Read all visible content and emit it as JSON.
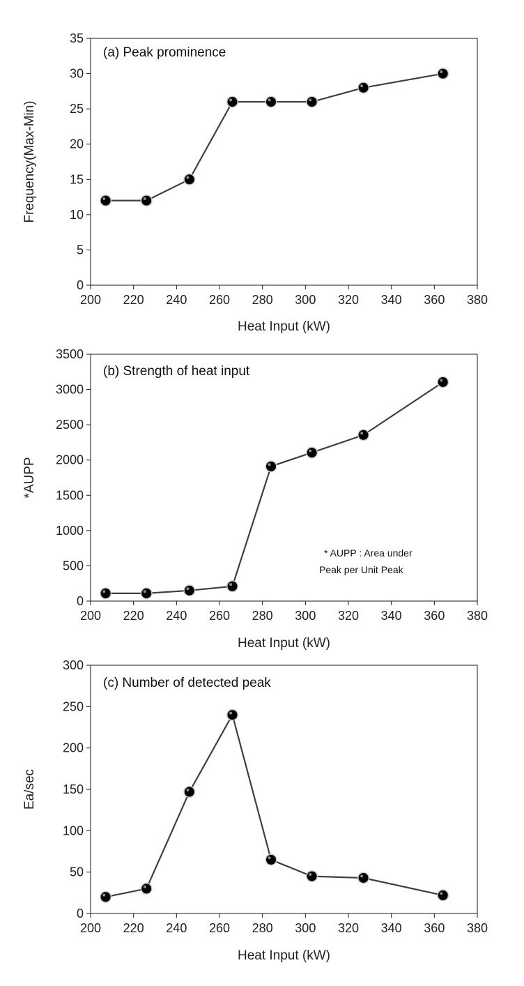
{
  "style": {
    "line_color": "#3a4048",
    "marker_color": "#000000"
  },
  "chart_data": [
    {
      "type": "line",
      "title": "(a) Peak prominence",
      "xlabel": "Heat Input (kW)",
      "ylabel": "Frequency(Max-Min)",
      "xlim": [
        200,
        380
      ],
      "ylim": [
        0,
        35
      ],
      "x_ticks": [
        "200",
        "220",
        "240",
        "260",
        "280",
        "300",
        "320",
        "340",
        "360",
        "380"
      ],
      "y_ticks": [
        "0",
        "5",
        "10",
        "15",
        "20",
        "25",
        "30",
        "35"
      ],
      "x": [
        207,
        226,
        246,
        266,
        284,
        303,
        327,
        364
      ],
      "y": [
        12,
        12,
        15,
        26,
        26,
        26,
        28,
        30
      ],
      "grid": false,
      "note_lines": []
    },
    {
      "type": "line",
      "title": "(b) Strength of heat input",
      "xlabel": "Heat Input (kW)",
      "ylabel": "*AUPP",
      "xlim": [
        200,
        380
      ],
      "ylim": [
        0,
        3500
      ],
      "x_ticks": [
        "200",
        "220",
        "240",
        "260",
        "280",
        "300",
        "320",
        "340",
        "360",
        "380"
      ],
      "y_ticks": [
        "0",
        "500",
        "1000",
        "1500",
        "2000",
        "2500",
        "3000",
        "3500"
      ],
      "x": [
        207,
        226,
        246,
        266,
        284,
        303,
        327,
        364
      ],
      "y": [
        110,
        110,
        150,
        210,
        1910,
        2105,
        2355,
        3105
      ],
      "grid": false,
      "note_lines": [
        "* AUPP : Area under",
        "Peak per Unit Peak"
      ]
    },
    {
      "type": "line",
      "title": "(c) Number of detected peak",
      "xlabel": "Heat Input (kW)",
      "ylabel": "Ea/sec",
      "xlim": [
        200,
        380
      ],
      "ylim": [
        0,
        300
      ],
      "x_ticks": [
        "200",
        "220",
        "240",
        "260",
        "280",
        "300",
        "320",
        "340",
        "360",
        "380"
      ],
      "y_ticks": [
        "0",
        "50",
        "100",
        "150",
        "200",
        "250",
        "300"
      ],
      "x": [
        207,
        226,
        246,
        266,
        284,
        303,
        327,
        364
      ],
      "y": [
        20,
        30,
        147,
        240,
        65,
        45,
        43,
        22
      ],
      "grid": false,
      "note_lines": []
    }
  ]
}
